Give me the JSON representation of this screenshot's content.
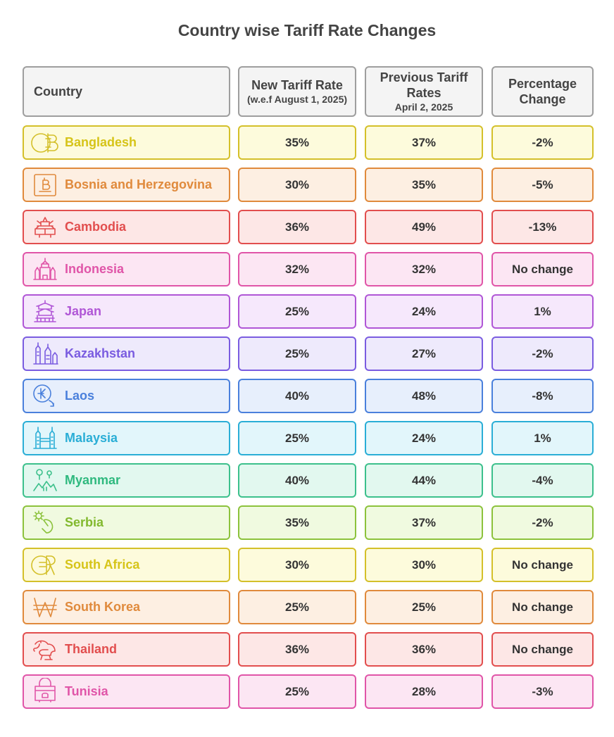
{
  "title": "Country wise Tariff Rate Changes",
  "headers": {
    "country": "Country",
    "new_rate": "New Tariff Rate",
    "new_rate_sub": "(w.e.f August 1, 2025)",
    "prev_rate_line1": "Previous Tariff",
    "prev_rate_line2": "Rates",
    "prev_rate_sub": "April 2, 2025",
    "pct_line1": "Percentage",
    "pct_line2": "Change"
  },
  "rows": [
    {
      "country": "Bangladesh",
      "new": "35%",
      "prev": "37%",
      "change": "-2%",
      "icon": "currency-taka-icon",
      "color": "#d4c02a",
      "fill": "#fdfbdc",
      "text": "#d6c418"
    },
    {
      "country": "Bosnia and Herzegovina",
      "new": "30%",
      "prev": "35%",
      "change": "-5%",
      "icon": "currency-mark-icon",
      "color": "#e08a3c",
      "fill": "#fdefe2",
      "text": "#e08a3c"
    },
    {
      "country": "Cambodia",
      "new": "36%",
      "prev": "49%",
      "change": "-13%",
      "icon": "temple-icon",
      "color": "#e24e4e",
      "fill": "#fde7e6",
      "text": "#e24e4e"
    },
    {
      "country": "Indonesia",
      "new": "32%",
      "prev": "32%",
      "change": "No change",
      "icon": "temples-icon",
      "color": "#e055a8",
      "fill": "#fce6f3",
      "text": "#e055a8"
    },
    {
      "country": "Japan",
      "new": "25%",
      "prev": "24%",
      "change": "1%",
      "icon": "pagoda-icon",
      "color": "#b056d6",
      "fill": "#f6e8fc",
      "text": "#b056d6"
    },
    {
      "country": "Kazakhstan",
      "new": "25%",
      "prev": "27%",
      "change": "-2%",
      "icon": "towers-icon",
      "color": "#7a5ce0",
      "fill": "#eeeafc",
      "text": "#7a5ce0"
    },
    {
      "country": "Laos",
      "new": "40%",
      "prev": "48%",
      "change": "-8%",
      "icon": "currency-kip-icon",
      "color": "#4a80dc",
      "fill": "#e7effc",
      "text": "#4a80dc"
    },
    {
      "country": "Malaysia",
      "new": "25%",
      "prev": "24%",
      "change": "1%",
      "icon": "twin-towers-icon",
      "color": "#2aaed6",
      "fill": "#e2f6fb",
      "text": "#2aaed6"
    },
    {
      "country": "Myanmar",
      "new": "40%",
      "prev": "44%",
      "change": "-4%",
      "icon": "landscape-icon",
      "color": "#3cc08c",
      "fill": "#e2f8ef",
      "text": "#2fb97f"
    },
    {
      "country": "Serbia",
      "new": "35%",
      "prev": "37%",
      "change": "-2%",
      "icon": "hand-gear-icon",
      "color": "#8cc23c",
      "fill": "#f0fae0",
      "text": "#82b92e"
    },
    {
      "country": "South Africa",
      "new": "30%",
      "prev": "30%",
      "change": "No change",
      "icon": "currency-rand-icon",
      "color": "#d4c02a",
      "fill": "#fdfbdc",
      "text": "#d6c418"
    },
    {
      "country": "South Korea",
      "new": "25%",
      "prev": "25%",
      "change": "No change",
      "icon": "currency-won-icon",
      "color": "#e08a3c",
      "fill": "#fdefe2",
      "text": "#e08a3c"
    },
    {
      "country": "Thailand",
      "new": "36%",
      "prev": "36%",
      "change": "No change",
      "icon": "elephant-icon",
      "color": "#e24e4e",
      "fill": "#fde7e6",
      "text": "#e24e4e"
    },
    {
      "country": "Tunisia",
      "new": "25%",
      "prev": "28%",
      "change": "-3%",
      "icon": "handbag-icon",
      "color": "#e055a8",
      "fill": "#fce6f3",
      "text": "#e055a8"
    }
  ]
}
